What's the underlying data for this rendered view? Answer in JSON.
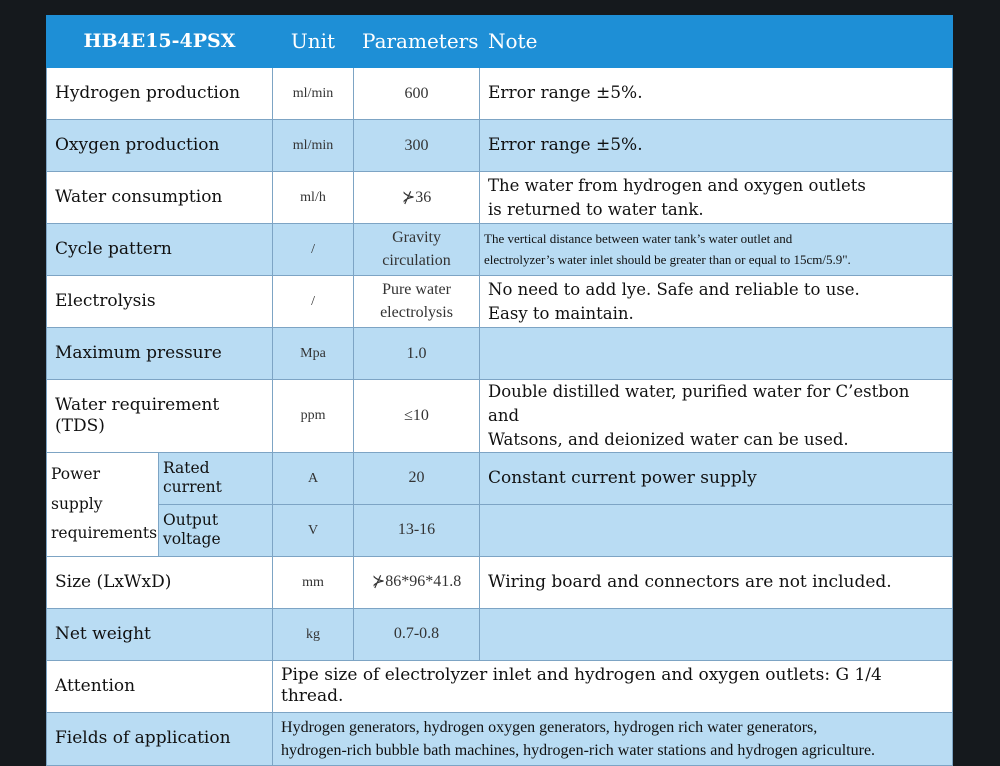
{
  "header": {
    "model": "HB4E15-4PSX",
    "unit": "Unit",
    "parameters": "Parameters",
    "note": "Note"
  },
  "rows": [
    {
      "item": "Hydrogen production",
      "unit": "ml/min",
      "param": "600",
      "note": "Error range ±5%."
    },
    {
      "item": "Oxygen production",
      "unit": "ml/min",
      "param": "300",
      "note": "Error range ±5%."
    },
    {
      "item": "Water consumption",
      "unit": "ml/h",
      "param": "⊁36",
      "note_lines": [
        "The water from hydrogen and oxygen outlets",
        "is returned to water tank."
      ]
    },
    {
      "item": "Cycle pattern",
      "unit": "/",
      "param_lines": [
        "Gravity",
        "circulation"
      ],
      "note_lines": [
        "The vertical distance between water tank’s water outlet and",
        "electrolyzer’s water inlet should be greater than or equal to 15cm/5.9\"."
      ]
    },
    {
      "item": "Electrolysis",
      "unit": "/",
      "param_lines": [
        "Pure water",
        "electrolysis"
      ],
      "note_lines": [
        "No need to add lye. Safe and reliable to use.",
        "Easy to maintain."
      ]
    },
    {
      "item": "Maximum pressure",
      "unit": "Mpa",
      "param": "1.0",
      "note": ""
    },
    {
      "item": "Water requirement (TDS)",
      "unit": "ppm",
      "param": "≤10",
      "note_lines": [
        "Double distilled water, purified water for C’estbon and",
        "Watsons, and deionized water can be used."
      ]
    },
    {
      "item": "Size (LxWxD)",
      "unit": "mm",
      "param": "⊁86*96*41.8",
      "note": "Wiring board and connectors are not included."
    },
    {
      "item": "Net weight",
      "unit": "kg",
      "param": "0.7-0.8",
      "note": ""
    }
  ],
  "power": {
    "group_lines": [
      "Power supply",
      "requirements"
    ],
    "sub": [
      {
        "label": "Rated current",
        "unit": "A",
        "param": "20",
        "note": "Constant current power supply"
      },
      {
        "label": "Output voltage",
        "unit": "V",
        "param": "13-16",
        "note": ""
      }
    ]
  },
  "attention": {
    "label": "Attention",
    "text": "Pipe size of electrolyzer inlet and hydrogen and oxygen outlets: G 1/4 thread."
  },
  "fields": {
    "label": "Fields of application",
    "lines": [
      "Hydrogen generators, hydrogen oxygen generators, hydrogen rich water generators,",
      "hydrogen-rich bubble bath machines, hydrogen-rich water stations and hydrogen agriculture."
    ]
  }
}
